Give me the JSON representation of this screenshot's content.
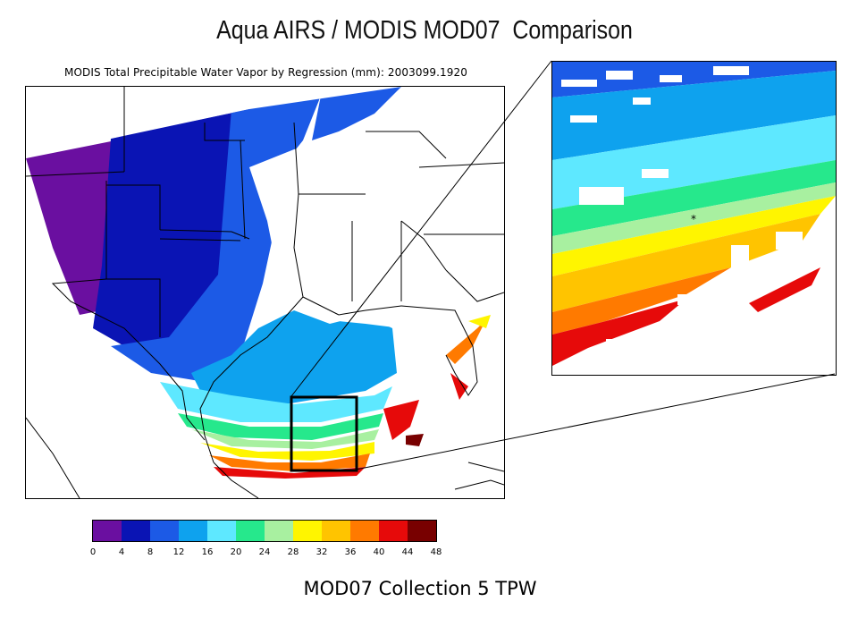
{
  "title": "Aqua AIRS / MODIS MOD07  Comparison",
  "map": {
    "caption": "MODIS Total Precipitable Water Vapor by Regression (mm): 2003099.1920"
  },
  "colorbar": {
    "colors": [
      "#6a0fa0",
      "#0a14b4",
      "#1c5ae6",
      "#0ea2ee",
      "#5ee8ff",
      "#26e88c",
      "#a8f0a0",
      "#fff500",
      "#ffc400",
      "#ff7a00",
      "#e60a0a",
      "#780000"
    ],
    "ticks": [
      "0",
      "4",
      "8",
      "12",
      "16",
      "20",
      "24",
      "28",
      "32",
      "36",
      "40",
      "44",
      "48"
    ]
  },
  "subtitle": "MOD07 Collection 5 TPW"
}
